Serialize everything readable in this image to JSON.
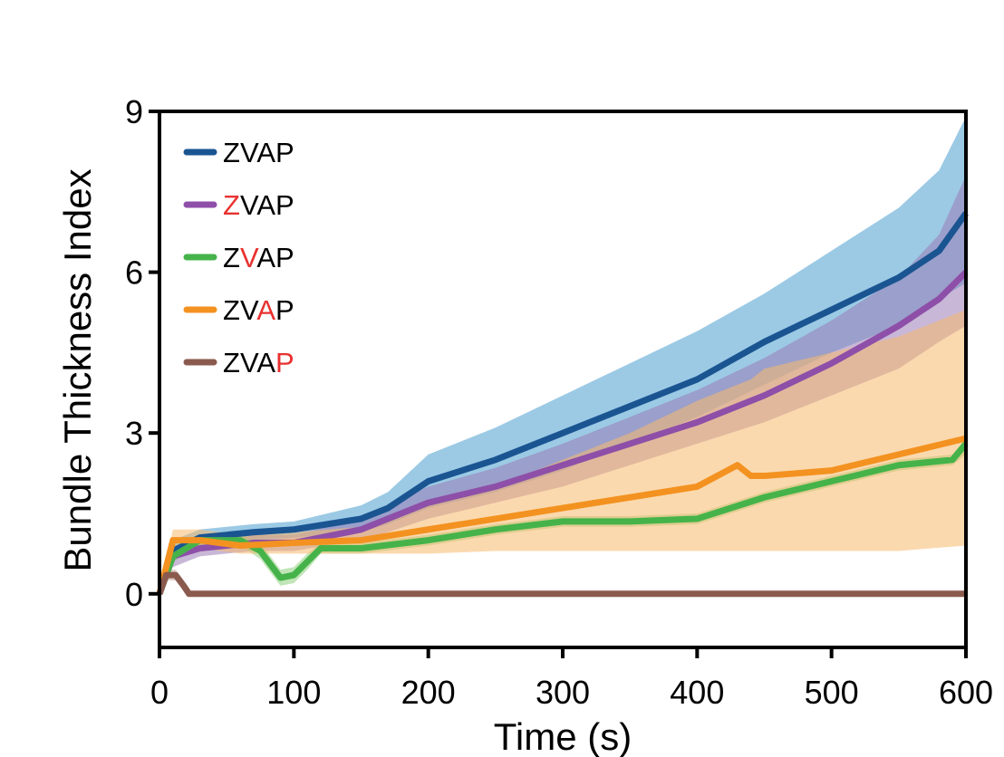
{
  "chart_data": {
    "type": "line",
    "title": "",
    "xlabel": "Time (s)",
    "ylabel": "Bundle Thickness Index",
    "xlim": [
      0,
      600
    ],
    "ylim": [
      -1,
      9
    ],
    "xticks": [
      "0",
      "100",
      "200",
      "300",
      "400",
      "500",
      "600"
    ],
    "yticks": [
      "0",
      "3",
      "6",
      "9"
    ],
    "legend_position": "top-left",
    "highlight_color": "#e8312f",
    "series": [
      {
        "name": "ZVAP",
        "highlight_index": -1,
        "color": "#1a5592",
        "band_color": "#4a9fd0",
        "x": [
          0,
          10,
          30,
          50,
          70,
          100,
          150,
          170,
          200,
          250,
          300,
          350,
          400,
          450,
          500,
          550,
          580,
          600
        ],
        "y": [
          0,
          0.8,
          1.05,
          1.1,
          1.15,
          1.2,
          1.4,
          1.6,
          2.1,
          2.5,
          3.0,
          3.5,
          4.0,
          4.7,
          5.3,
          5.9,
          6.4,
          7.1
        ],
        "lower": [
          0,
          0.6,
          0.9,
          1.0,
          1.0,
          1.05,
          1.15,
          1.3,
          1.6,
          1.9,
          2.3,
          2.8,
          3.3,
          3.9,
          4.5,
          5.0,
          5.5,
          5.8
        ],
        "upper": [
          0,
          1.0,
          1.2,
          1.25,
          1.3,
          1.35,
          1.65,
          1.9,
          2.6,
          3.1,
          3.7,
          4.3,
          4.9,
          5.6,
          6.4,
          7.2,
          7.9,
          8.9
        ]
      },
      {
        "name": "ZVAP",
        "highlight_index": 0,
        "color": "#8e4fa8",
        "band_color": "#9b7cb6",
        "x": [
          0,
          10,
          30,
          50,
          70,
          100,
          150,
          170,
          200,
          250,
          300,
          350,
          400,
          450,
          500,
          550,
          580,
          600
        ],
        "y": [
          0,
          0.7,
          0.85,
          0.9,
          0.95,
          0.95,
          1.2,
          1.4,
          1.7,
          2.0,
          2.4,
          2.8,
          3.2,
          3.7,
          4.3,
          5.0,
          5.5,
          6.0
        ],
        "lower": [
          0,
          0.5,
          0.7,
          0.75,
          0.8,
          0.8,
          1.0,
          1.15,
          1.4,
          1.7,
          2.0,
          2.4,
          2.8,
          3.2,
          3.7,
          4.2,
          4.7,
          5.0
        ],
        "upper": [
          0,
          0.9,
          1.0,
          1.05,
          1.1,
          1.1,
          1.4,
          1.65,
          2.0,
          2.35,
          2.8,
          3.3,
          3.8,
          4.4,
          5.1,
          5.9,
          6.7,
          7.8
        ]
      },
      {
        "name": "ZVAP",
        "highlight_index": 1,
        "color": "#45b34a",
        "band_color": "#8fcf7e",
        "x": [
          0,
          10,
          30,
          60,
          75,
          90,
          100,
          110,
          120,
          150,
          200,
          250,
          300,
          350,
          400,
          450,
          500,
          550,
          590,
          600
        ],
        "y": [
          0,
          0.7,
          1.0,
          1.0,
          0.8,
          0.3,
          0.35,
          0.6,
          0.85,
          0.85,
          1.0,
          1.2,
          1.35,
          1.35,
          1.4,
          1.8,
          2.1,
          2.4,
          2.5,
          2.8
        ],
        "lower": [
          0,
          0.6,
          0.9,
          0.9,
          0.65,
          0.15,
          0.2,
          0.45,
          0.75,
          0.75,
          0.9,
          1.1,
          1.25,
          1.25,
          1.3,
          1.7,
          2.0,
          2.3,
          2.4,
          2.6
        ],
        "upper": [
          0,
          0.8,
          1.1,
          1.1,
          0.95,
          0.45,
          0.5,
          0.75,
          0.95,
          0.95,
          1.1,
          1.3,
          1.45,
          1.45,
          1.5,
          1.9,
          2.2,
          2.5,
          2.6,
          2.9
        ]
      },
      {
        "name": "ZVAP",
        "highlight_index": 2,
        "color": "#f39220",
        "band_color": "#f7b96e",
        "x": [
          0,
          10,
          30,
          60,
          100,
          150,
          200,
          250,
          300,
          350,
          400,
          430,
          440,
          450,
          500,
          550,
          600
        ],
        "y": [
          0,
          1.0,
          1.0,
          0.9,
          0.95,
          1.0,
          1.2,
          1.4,
          1.6,
          1.8,
          2.0,
          2.4,
          2.2,
          2.2,
          2.3,
          2.6,
          2.9
        ],
        "lower": [
          0,
          0.8,
          0.85,
          0.75,
          0.75,
          0.75,
          0.75,
          0.8,
          0.8,
          0.8,
          0.8,
          0.8,
          0.8,
          0.8,
          0.8,
          0.8,
          0.9
        ],
        "upper": [
          0,
          1.2,
          1.2,
          1.1,
          1.15,
          1.25,
          1.7,
          2.0,
          2.5,
          3.0,
          3.6,
          3.9,
          4.0,
          4.2,
          4.5,
          4.8,
          5.3
        ]
      },
      {
        "name": "ZVAP",
        "highlight_index": 3,
        "color": "#8b5a4e",
        "band_color": "#c8a49a",
        "x": [
          0,
          5,
          12,
          18,
          22,
          600
        ],
        "y": [
          0,
          0.35,
          0.35,
          0.15,
          0,
          0
        ],
        "lower": [
          0,
          0.25,
          0.25,
          0.05,
          0,
          0
        ],
        "upper": [
          0,
          0.45,
          0.45,
          0.25,
          0,
          0
        ]
      }
    ]
  }
}
